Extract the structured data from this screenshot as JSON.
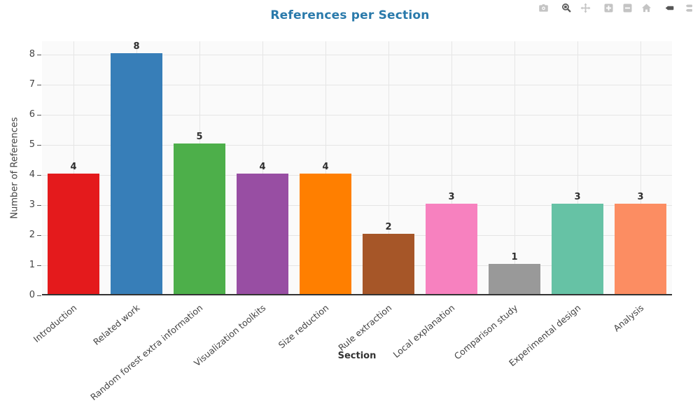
{
  "title": "References per Section",
  "modebar": {
    "buttons": [
      {
        "name": "camera",
        "active": false
      },
      {
        "name": "zoom",
        "active": true
      },
      {
        "name": "pan",
        "active": false
      },
      {
        "name": "zoom-in",
        "active": false
      },
      {
        "name": "zoom-out",
        "active": false
      },
      {
        "name": "reset-axes",
        "active": false
      },
      {
        "name": "hover-closest",
        "active": true
      },
      {
        "name": "hover-compare",
        "active": false
      }
    ]
  },
  "chart_data": {
    "type": "bar",
    "title": "References per Section",
    "xlabel": "Section",
    "ylabel": "Number of References",
    "categories": [
      "Introduction",
      "Related work",
      "Random forest extra information",
      "Visualization toolkits",
      "Size reduction",
      "Rule extraction",
      "Local explanation",
      "Comparison study",
      "Experimental design",
      "Analysis"
    ],
    "values": [
      4,
      8,
      5,
      4,
      4,
      2,
      3,
      1,
      3,
      3
    ],
    "bar_colors": [
      "#e41a1c",
      "#377eb8",
      "#4daf4a",
      "#984ea3",
      "#ff7f00",
      "#a65628",
      "#f781bf",
      "#999999",
      "#66c2a5",
      "#fc8d62"
    ],
    "yticks": [
      0,
      1,
      2,
      3,
      4,
      5,
      6,
      7,
      8
    ],
    "ylim": [
      0,
      8.44
    ],
    "grid": true,
    "value_labels_shown": true,
    "legend": "none",
    "colors": {
      "title": "#2a7aab",
      "plot_bg": "#fafafa",
      "grid": "#e5e5e5",
      "axis_line": "#333333",
      "axis_text": "#444444",
      "value_label": "#2f2f2f"
    }
  }
}
